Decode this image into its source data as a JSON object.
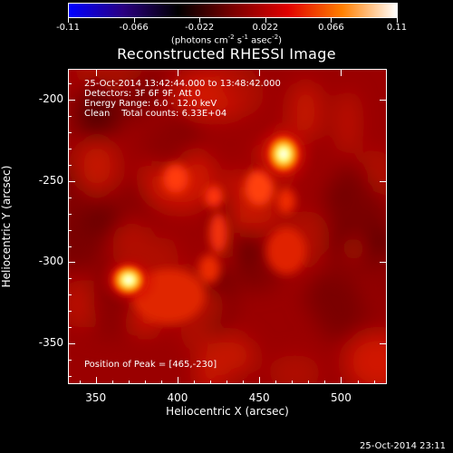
{
  "colorbar": {
    "ticks": [
      "-0.11",
      "-0.066",
      "-0.022",
      "0.022",
      "0.066",
      "0.11"
    ],
    "units_prefix": "(photons cm",
    "units_sup1": "-2",
    "units_mid": " s",
    "units_sup2": "-1",
    "units_mid2": " asec",
    "units_sup3": "-2",
    "units_suffix": ")",
    "colors": [
      "#0000ff",
      "#2a0080",
      "#000000",
      "#7a0000",
      "#e00000",
      "#ff8000",
      "#ffffff"
    ]
  },
  "title": "Reconstructed RHESSI Image",
  "info": {
    "line1": "25-Oct-2014 13:42:44.000 to 13:48:42.000",
    "line2": "Detectors: 3F 6F 9F, Att 0",
    "line3": "Energy Range: 6.0 - 12.0 keV",
    "line4": "Clean    Total counts: 6.33E+04",
    "peak": "Position of Peak = [465,-230]"
  },
  "axes": {
    "xlabel": "Heliocentric X (arcsec)",
    "ylabel": "Heliocentric Y (arcsec)",
    "xticks": [
      "350",
      "400",
      "450",
      "500"
    ],
    "yticks": [
      "-200",
      "-250",
      "-300",
      "-350"
    ]
  },
  "chart_data": {
    "type": "heatmap",
    "title": "Reconstructed RHESSI Image",
    "xlabel": "Heliocentric X (arcsec)",
    "ylabel": "Heliocentric Y (arcsec)",
    "xlim": [
      333,
      528
    ],
    "ylim": [
      -375,
      -181
    ],
    "value_range": [
      -0.11,
      0.11
    ],
    "sources": [
      {
        "x": 465,
        "y": -230,
        "intensity": 0.11,
        "label": "Position of Peak"
      },
      {
        "x": 369,
        "y": -306,
        "intensity": 0.09
      }
    ]
  },
  "timestamp": "25-Oct-2014 23:11"
}
